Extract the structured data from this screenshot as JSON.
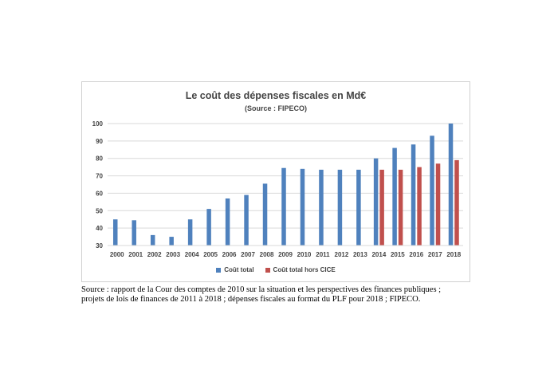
{
  "chart_data": {
    "type": "bar",
    "title": "Le coût des dépenses fiscales en Md€",
    "subtitle": "(Source : FIPECO)",
    "categories": [
      "2000",
      "2001",
      "2002",
      "2003",
      "2004",
      "2005",
      "2006",
      "2007",
      "2008",
      "2009",
      "2010",
      "2011",
      "2012",
      "2013",
      "2014",
      "2015",
      "2016",
      "2017",
      "2018"
    ],
    "series": [
      {
        "name": "Coût total",
        "color": "#4f81bd",
        "values": [
          45,
          44.5,
          36,
          35,
          45,
          51,
          57,
          59,
          65.5,
          74.5,
          74,
          73.5,
          73.5,
          73.5,
          80,
          86,
          88,
          93,
          100
        ]
      },
      {
        "name": "Coût total hors CICE",
        "color": "#c0504d",
        "values": [
          null,
          null,
          null,
          null,
          null,
          null,
          null,
          null,
          null,
          null,
          null,
          null,
          null,
          null,
          73.5,
          73.5,
          75,
          77,
          79
        ]
      }
    ],
    "yticks": [
      30,
      40,
      50,
      60,
      70,
      80,
      90,
      100
    ],
    "ylim": [
      30,
      100
    ],
    "grid": true,
    "legend_position": "bottom"
  },
  "source_lines": [
    "Source : rapport de la Cour des comptes de 2010 sur la situation et les perspectives des finances publiques ;",
    "projets de lois de finances de 2011 à 2018 ; dépenses fiscales au format du PLF pour 2018 ; FIPECO."
  ]
}
